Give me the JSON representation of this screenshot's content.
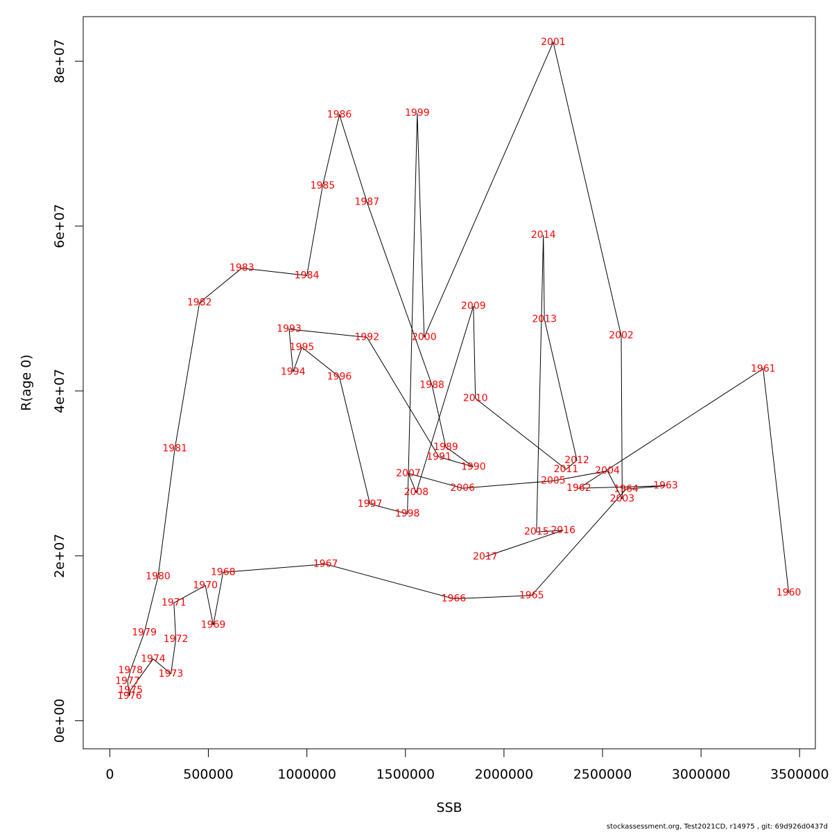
{
  "chart_data": {
    "type": "line",
    "title": "",
    "xlabel": "SSB",
    "ylabel": "R(age 0)",
    "xlim": [
      -135000,
      3580000
    ],
    "ylim": [
      -3400000,
      85400000
    ],
    "xticks": [
      0,
      500000,
      1000000,
      1500000,
      2000000,
      2500000,
      3000000,
      3500000
    ],
    "xtick_labels": [
      "0",
      "500000",
      "1000000",
      "1500000",
      "2000000",
      "2500000",
      "3000000",
      "3500000"
    ],
    "yticks": [
      0,
      20000000,
      40000000,
      60000000,
      80000000
    ],
    "ytick_labels": [
      "0e+00",
      "2e+07",
      "4e+07",
      "6e+07",
      "8e+07"
    ],
    "grid": false,
    "line_color": "#000000",
    "label_color": "#ff0000",
    "points": [
      {
        "year": "1960",
        "x": 3445000,
        "y": 15500000
      },
      {
        "year": "1961",
        "x": 3315000,
        "y": 42700000
      },
      {
        "year": "1962",
        "x": 2380000,
        "y": 28200000
      },
      {
        "year": "1963",
        "x": 2820000,
        "y": 28500000
      },
      {
        "year": "1964",
        "x": 2620000,
        "y": 28100000
      },
      {
        "year": "1965",
        "x": 2140000,
        "y": 15200000
      },
      {
        "year": "1966",
        "x": 1745000,
        "y": 14800000
      },
      {
        "year": "1967",
        "x": 1095000,
        "y": 19000000
      },
      {
        "year": "1968",
        "x": 575000,
        "y": 18000000
      },
      {
        "year": "1969",
        "x": 525000,
        "y": 11600000
      },
      {
        "year": "1970",
        "x": 485000,
        "y": 16400000
      },
      {
        "year": "1971",
        "x": 325000,
        "y": 14300000
      },
      {
        "year": "1972",
        "x": 335000,
        "y": 9900000
      },
      {
        "year": "1973",
        "x": 310000,
        "y": 5700000
      },
      {
        "year": "1974",
        "x": 220000,
        "y": 7500000
      },
      {
        "year": "1975",
        "x": 105000,
        "y": 3700000
      },
      {
        "year": "1976",
        "x": 100000,
        "y": 3000000
      },
      {
        "year": "1977",
        "x": 90000,
        "y": 4800000
      },
      {
        "year": "1978",
        "x": 105000,
        "y": 6100000
      },
      {
        "year": "1979",
        "x": 175000,
        "y": 10700000
      },
      {
        "year": "1980",
        "x": 245000,
        "y": 17500000
      },
      {
        "year": "1981",
        "x": 330000,
        "y": 33000000
      },
      {
        "year": "1982",
        "x": 455000,
        "y": 50700000
      },
      {
        "year": "1983",
        "x": 670000,
        "y": 54900000
      },
      {
        "year": "1984",
        "x": 1000000,
        "y": 54000000
      },
      {
        "year": "1985",
        "x": 1080000,
        "y": 64900000
      },
      {
        "year": "1986",
        "x": 1165000,
        "y": 73500000
      },
      {
        "year": "1987",
        "x": 1305000,
        "y": 62900000
      },
      {
        "year": "1988",
        "x": 1635000,
        "y": 40700000
      },
      {
        "year": "1989",
        "x": 1705000,
        "y": 33200000
      },
      {
        "year": "1990",
        "x": 1845000,
        "y": 30800000
      },
      {
        "year": "1991",
        "x": 1670000,
        "y": 32000000
      },
      {
        "year": "1992",
        "x": 1305000,
        "y": 46500000
      },
      {
        "year": "1993",
        "x": 910000,
        "y": 47500000
      },
      {
        "year": "1994",
        "x": 930000,
        "y": 42300000
      },
      {
        "year": "1995",
        "x": 975000,
        "y": 45300000
      },
      {
        "year": "1996",
        "x": 1165000,
        "y": 41700000
      },
      {
        "year": "1997",
        "x": 1320000,
        "y": 26300000
      },
      {
        "year": "1998",
        "x": 1510000,
        "y": 25100000
      },
      {
        "year": "1999",
        "x": 1560000,
        "y": 73700000
      },
      {
        "year": "2000",
        "x": 1595000,
        "y": 46500000
      },
      {
        "year": "2001",
        "x": 2250000,
        "y": 82300000
      },
      {
        "year": "2002",
        "x": 2595000,
        "y": 46700000
      },
      {
        "year": "2003",
        "x": 2600000,
        "y": 26900000
      },
      {
        "year": "2004",
        "x": 2525000,
        "y": 30300000
      },
      {
        "year": "2005",
        "x": 2250000,
        "y": 29100000
      },
      {
        "year": "2006",
        "x": 1790000,
        "y": 28200000
      },
      {
        "year": "2007",
        "x": 1515000,
        "y": 30000000
      },
      {
        "year": "2008",
        "x": 1555000,
        "y": 27700000
      },
      {
        "year": "2009",
        "x": 1845000,
        "y": 50300000
      },
      {
        "year": "2010",
        "x": 1855000,
        "y": 39100000
      },
      {
        "year": "2011",
        "x": 2315000,
        "y": 30500000
      },
      {
        "year": "2012",
        "x": 2370000,
        "y": 31600000
      },
      {
        "year": "2013",
        "x": 2205000,
        "y": 48700000
      },
      {
        "year": "2014",
        "x": 2200000,
        "y": 58900000
      },
      {
        "year": "2015",
        "x": 2165000,
        "y": 22900000
      },
      {
        "year": "2016",
        "x": 2300000,
        "y": 23100000
      },
      {
        "year": "2017",
        "x": 1905000,
        "y": 19900000
      }
    ]
  },
  "footer_text": "stockassessment.org, Test2021CD, r14975 , git: 69d926d0437d"
}
